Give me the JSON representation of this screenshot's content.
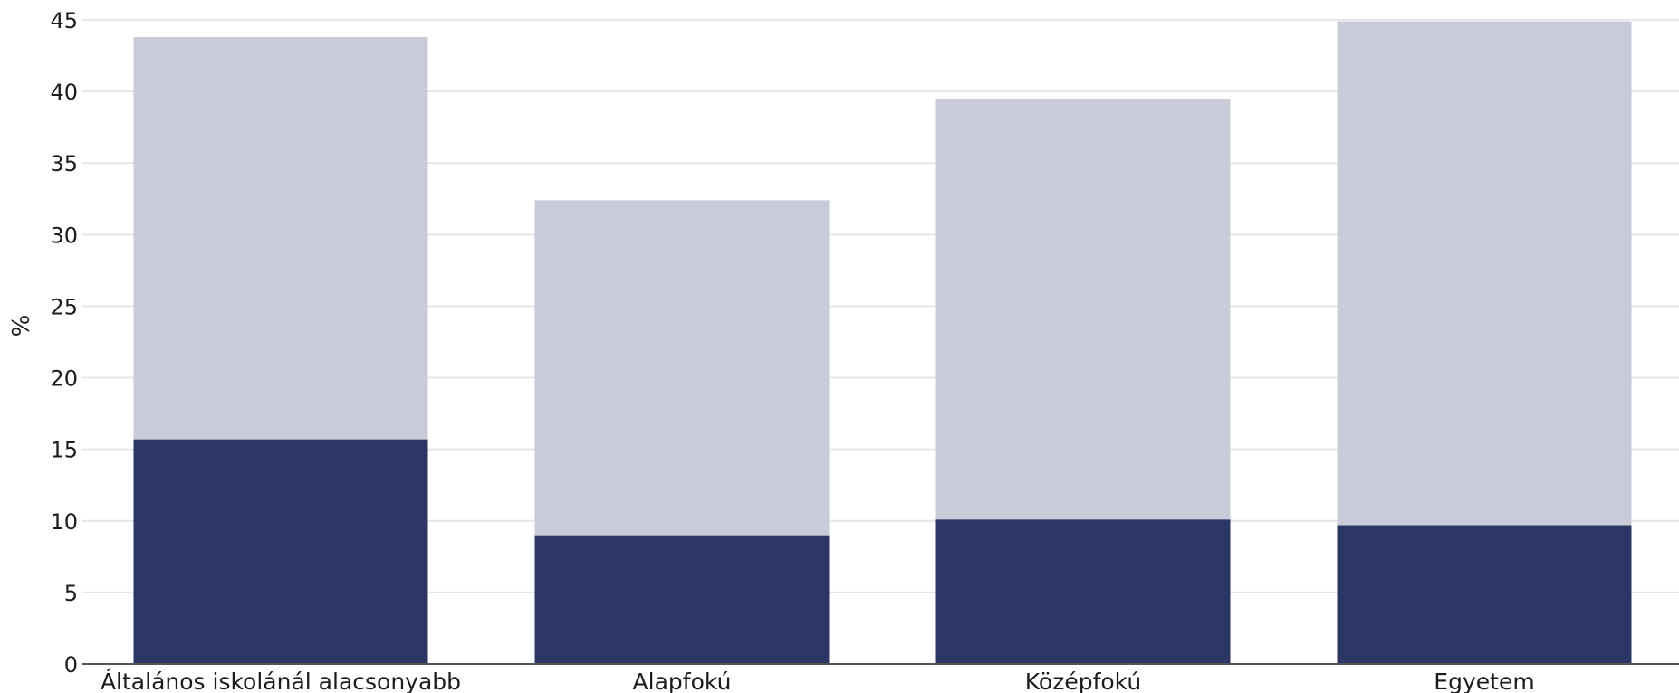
{
  "chart_data": {
    "type": "bar",
    "stacked": true,
    "categories": [
      "Általános iskolánál alacsonyabb",
      "Alapfokú",
      "Középfokú",
      "Egyetem"
    ],
    "series": [
      {
        "values": [
          15.7,
          9.0,
          10.1,
          9.7
        ],
        "color": "#2b3664"
      },
      {
        "values": [
          28.1,
          23.4,
          29.4,
          35.2
        ],
        "color": "#c9cbd8"
      }
    ],
    "ylabel": "%",
    "xlabel": "",
    "title": "",
    "ylim": [
      0,
      45
    ],
    "yticks": [
      0,
      5,
      10,
      15,
      20,
      25,
      30,
      35,
      40,
      45
    ],
    "grid": true,
    "legend": "none"
  },
  "colors": {
    "grid": "#e6e6e6",
    "axis": "#555555",
    "text": "#1c1c1c"
  }
}
